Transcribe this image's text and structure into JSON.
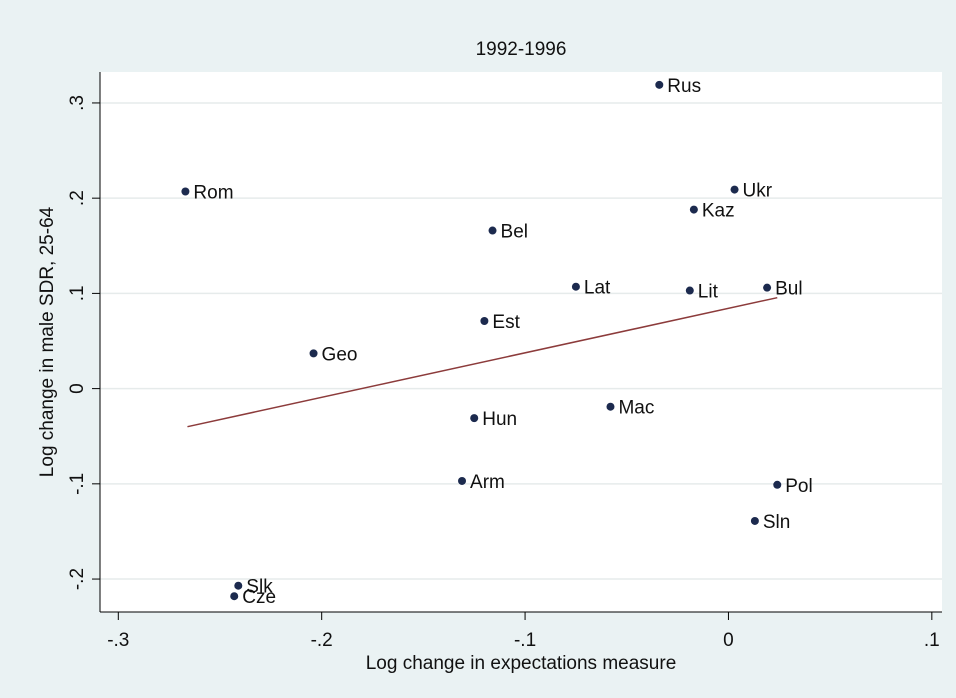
{
  "chart_data": {
    "type": "scatter",
    "title": "1992-1996",
    "xlabel": "Log change in expectations measure",
    "ylabel": "Log change in male SDR, 25-64",
    "labels": [
      "Rus",
      "Rom",
      "Ukr",
      "Kaz",
      "Bel",
      "Lat",
      "Lit",
      "Bul",
      "Est",
      "Geo",
      "Mac",
      "Hun",
      "Arm",
      "Pol",
      "Sln",
      "Slk",
      "Cze"
    ],
    "x": [
      -0.034,
      -0.267,
      0.003,
      -0.017,
      -0.116,
      -0.075,
      -0.019,
      0.019,
      -0.12,
      -0.204,
      -0.058,
      -0.125,
      -0.131,
      0.024,
      0.013,
      -0.241,
      -0.243
    ],
    "y": [
      0.319,
      0.207,
      0.209,
      0.188,
      0.166,
      0.107,
      0.103,
      0.106,
      0.071,
      0.037,
      -0.019,
      -0.031,
      -0.097,
      -0.101,
      -0.139,
      -0.207,
      -0.218
    ],
    "color": "#1c2a4e",
    "fit_line": {
      "x": [
        -0.266,
        0.024
      ],
      "y": [
        -0.04,
        0.0955
      ],
      "color": "#8c3b3b"
    },
    "xlim": [
      -0.309,
      0.105
    ],
    "ylim": [
      -0.2346,
      0.3325
    ],
    "xticks": [
      {
        "value": -0.3,
        "label": "-.3"
      },
      {
        "value": -0.2,
        "label": "-.2"
      },
      {
        "value": -0.1,
        "label": "-.1"
      },
      0,
      {
        "value": 0.1,
        "label": ".1"
      }
    ],
    "yticks": [
      {
        "value": -0.2,
        "label": "-.2"
      },
      {
        "value": -0.1,
        "label": "-.1"
      },
      0,
      {
        "value": 0.1,
        "label": ".1"
      },
      {
        "value": 0.2,
        "label": ".2"
      },
      {
        "value": 0.3,
        "label": ".3"
      }
    ],
    "grid": true
  }
}
